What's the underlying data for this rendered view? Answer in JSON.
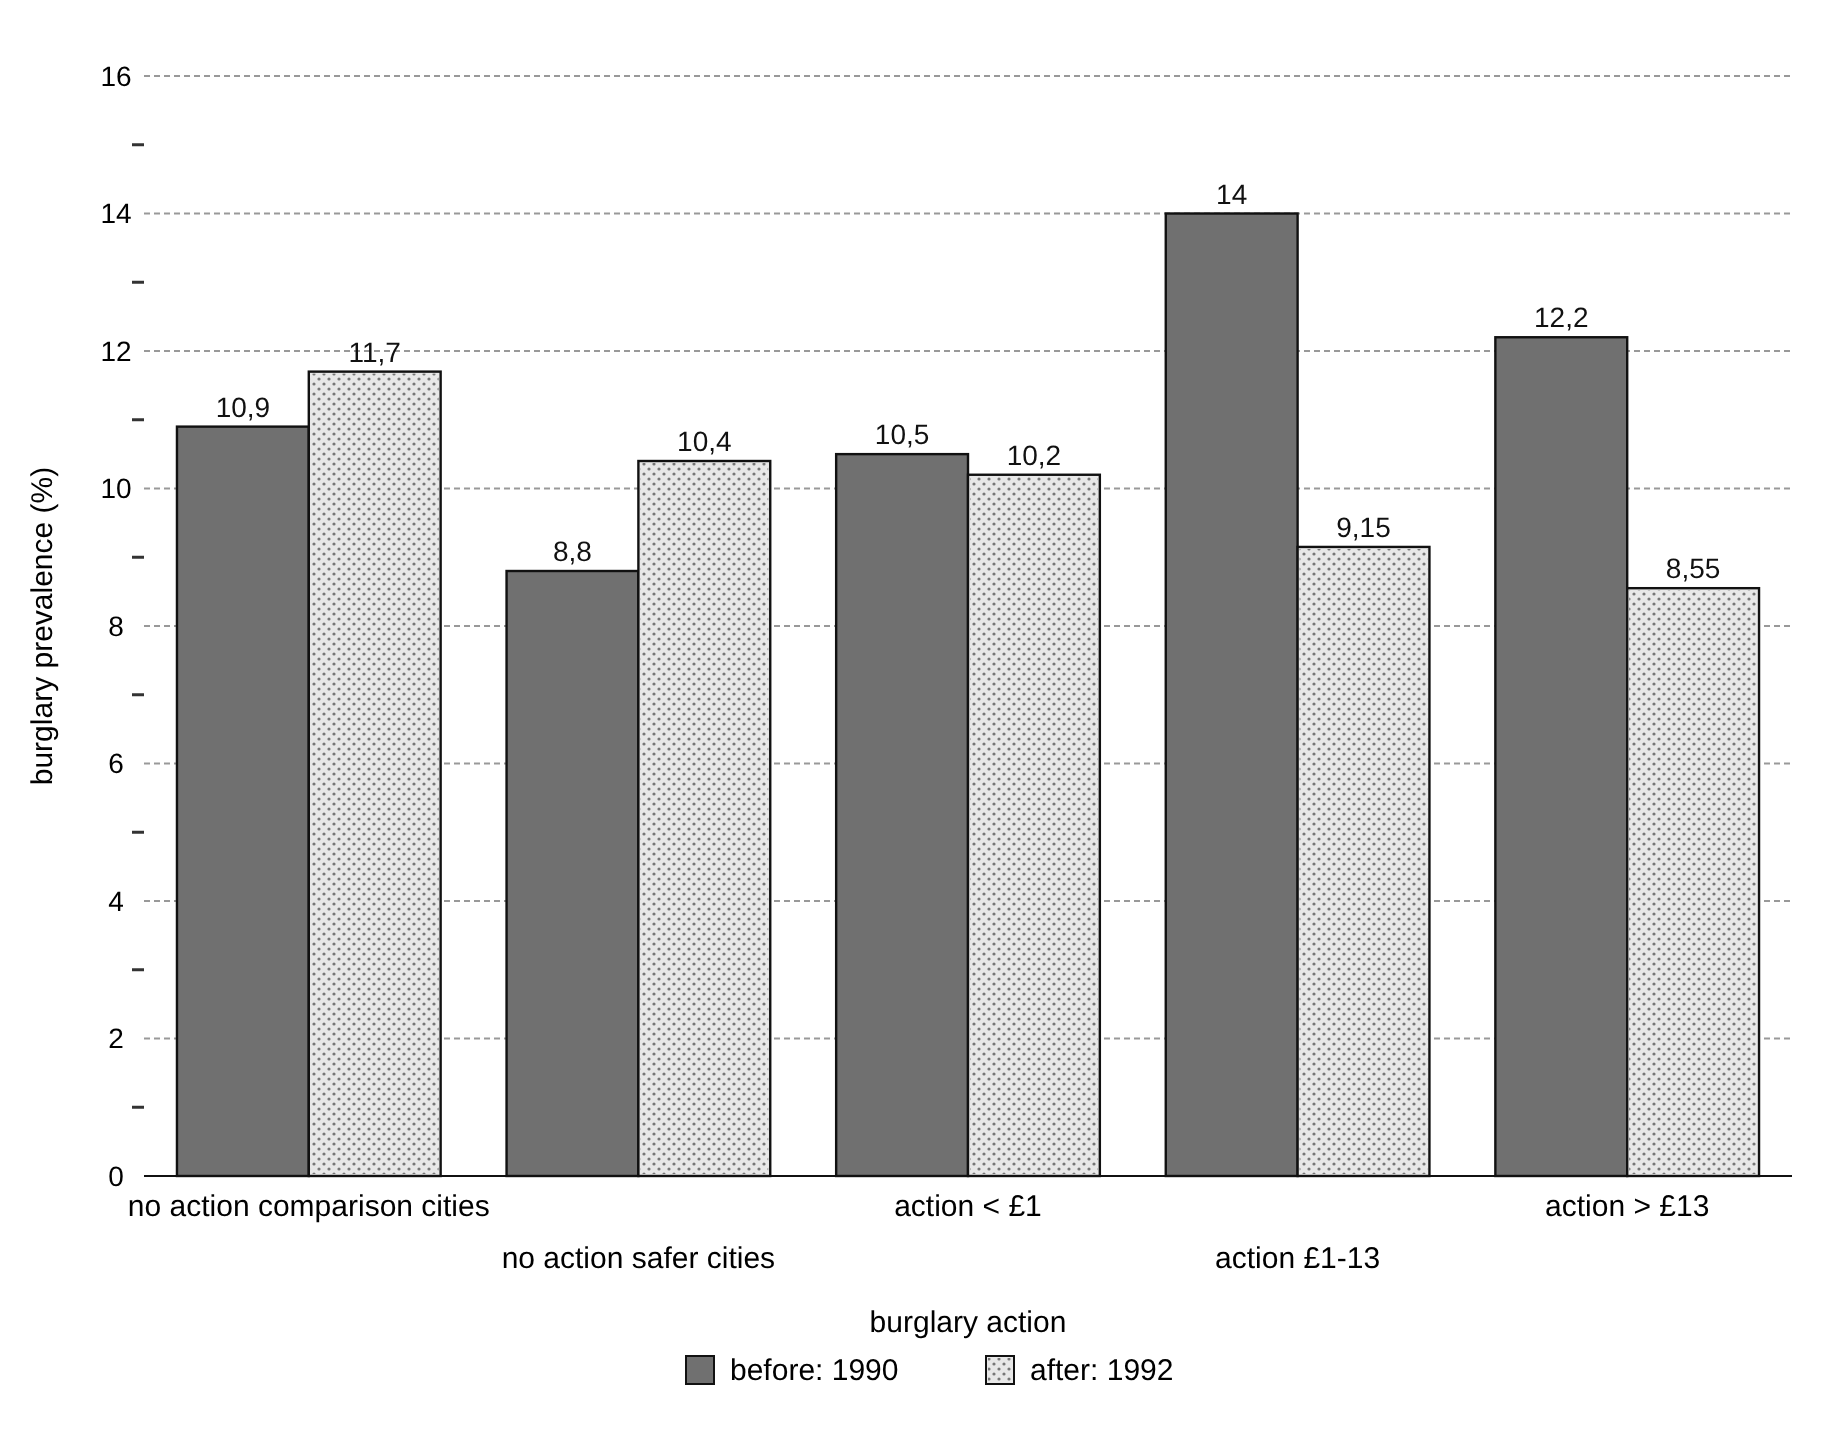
{
  "chart_data": {
    "type": "bar",
    "xlabel": "burglary action",
    "ylabel": "burglary prevalence (%)",
    "categories": [
      "no action comparison cities",
      "no action safer cities",
      "action < £1",
      "action £1-13",
      "action > £13"
    ],
    "series": [
      {
        "name": "before: 1990",
        "color": "#707070",
        "values": [
          10.9,
          8.8,
          10.5,
          14,
          12.2
        ],
        "value_labels": [
          "10,9",
          "8,8",
          "10,5",
          "14",
          "12,2"
        ]
      },
      {
        "name": "after: 1992",
        "color": "#e8e8e8",
        "values": [
          11.7,
          10.4,
          10.2,
          9.15,
          8.55
        ],
        "value_labels": [
          "11,7",
          "10,4",
          "10,2",
          "9,15",
          "8,55"
        ]
      }
    ],
    "ylim": [
      0,
      16
    ],
    "yticks": [
      0,
      {
        "value": 1,
        "label": null
      },
      2,
      {
        "value": 3,
        "label": null
      },
      4,
      {
        "value": 5,
        "label": null
      },
      6,
      {
        "value": 7,
        "label": null
      },
      8,
      {
        "value": 9,
        "label": null
      },
      10,
      {
        "value": 11,
        "label": null
      },
      12,
      {
        "value": 13,
        "label": null
      },
      14,
      {
        "value": 15,
        "label": null
      },
      16
    ],
    "grid": "y",
    "legend": "bottom"
  }
}
